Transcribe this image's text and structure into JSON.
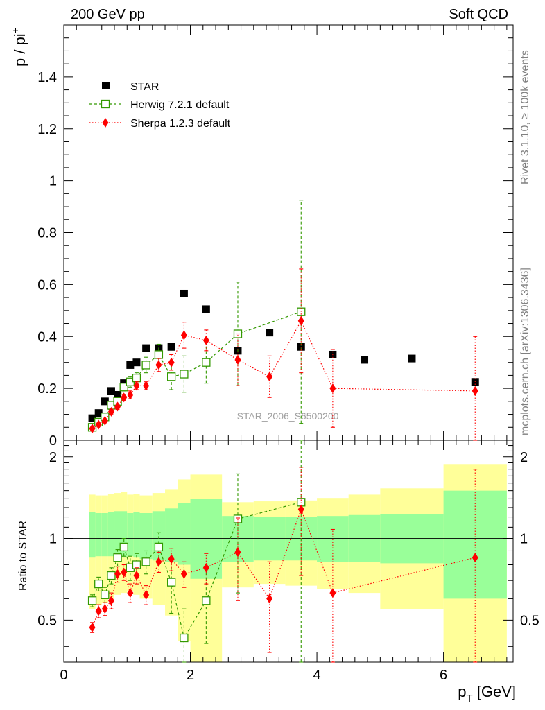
{
  "header": {
    "left": "200 GeV pp",
    "right": "Soft QCD"
  },
  "side_labels": {
    "rivet": "Rivet 3.1.10, ≥ 100k events",
    "mcplots": "mcplots.cern.ch [arXiv:1306.3436]"
  },
  "chart_data": {
    "type": "scatter",
    "analysis_label": "STAR_2006_S6500200",
    "top_panel": {
      "ylabel_main": "p / pi",
      "ylabel_sup": "+",
      "ylim": [
        0,
        1.6
      ],
      "yticks": [
        "0",
        "0.2",
        "0.4",
        "0.6",
        "0.8",
        "1",
        "1.2",
        "1.4"
      ],
      "ytick_values": [
        0,
        0.2,
        0.4,
        0.6,
        0.8,
        1.0,
        1.2,
        1.4
      ]
    },
    "ratio_panel": {
      "ylabel": "Ratio to STAR",
      "ylim": [
        0.35,
        2.3
      ],
      "yticks": [
        "0.5",
        "1",
        "2"
      ],
      "ytick_values": [
        0.5,
        1,
        2
      ],
      "reference_line": 1,
      "bands": [
        {
          "x0": 0.4,
          "x1": 0.5,
          "g_lo": 0.85,
          "g_hi": 1.25,
          "y_lo": 0.55,
          "y_hi": 1.45
        },
        {
          "x0": 0.5,
          "x1": 0.6,
          "g_lo": 0.86,
          "g_hi": 1.24,
          "y_lo": 0.57,
          "y_hi": 1.44
        },
        {
          "x0": 0.6,
          "x1": 0.7,
          "g_lo": 0.86,
          "g_hi": 1.24,
          "y_lo": 0.58,
          "y_hi": 1.44
        },
        {
          "x0": 0.7,
          "x1": 0.8,
          "g_lo": 0.86,
          "g_hi": 1.25,
          "y_lo": 0.6,
          "y_hi": 1.46
        },
        {
          "x0": 0.8,
          "x1": 0.9,
          "g_lo": 0.85,
          "g_hi": 1.26,
          "y_lo": 0.62,
          "y_hi": 1.47
        },
        {
          "x0": 0.9,
          "x1": 1.0,
          "g_lo": 0.85,
          "g_hi": 1.26,
          "y_lo": 0.63,
          "y_hi": 1.48
        },
        {
          "x0": 1.0,
          "x1": 1.1,
          "g_lo": 0.86,
          "g_hi": 1.24,
          "y_lo": 0.64,
          "y_hi": 1.45
        },
        {
          "x0": 1.1,
          "x1": 1.2,
          "g_lo": 0.85,
          "g_hi": 1.25,
          "y_lo": 0.62,
          "y_hi": 1.46
        },
        {
          "x0": 1.2,
          "x1": 1.4,
          "g_lo": 0.84,
          "g_hi": 1.24,
          "y_lo": 0.6,
          "y_hi": 1.44
        },
        {
          "x0": 1.4,
          "x1": 1.6,
          "g_lo": 0.83,
          "g_hi": 1.26,
          "y_lo": 0.57,
          "y_hi": 1.47
        },
        {
          "x0": 1.6,
          "x1": 1.8,
          "g_lo": 0.82,
          "g_hi": 1.29,
          "y_lo": 0.52,
          "y_hi": 1.52
        },
        {
          "x0": 1.8,
          "x1": 2.0,
          "g_lo": 0.8,
          "g_hi": 1.35,
          "y_lo": 0.42,
          "y_hi": 1.65
        },
        {
          "x0": 2.0,
          "x1": 2.5,
          "g_lo": 0.71,
          "g_hi": 1.4,
          "y_lo": 0.3,
          "y_hi": 1.72
        },
        {
          "x0": 2.5,
          "x1": 3.0,
          "g_lo": 0.82,
          "g_hi": 1.21,
          "y_lo": 0.66,
          "y_hi": 1.36
        },
        {
          "x0": 3.0,
          "x1": 3.5,
          "g_lo": 0.83,
          "g_hi": 1.2,
          "y_lo": 0.68,
          "y_hi": 1.37
        },
        {
          "x0": 3.5,
          "x1": 4.0,
          "g_lo": 0.83,
          "g_hi": 1.2,
          "y_lo": 0.67,
          "y_hi": 1.38
        },
        {
          "x0": 4.0,
          "x1": 4.5,
          "g_lo": 0.82,
          "g_hi": 1.21,
          "y_lo": 0.65,
          "y_hi": 1.41
        },
        {
          "x0": 4.5,
          "x1": 5.0,
          "g_lo": 0.82,
          "g_hi": 1.22,
          "y_lo": 0.63,
          "y_hi": 1.45
        },
        {
          "x0": 5.0,
          "x1": 6.0,
          "g_lo": 0.81,
          "g_hi": 1.23,
          "y_lo": 0.55,
          "y_hi": 1.53
        },
        {
          "x0": 6.0,
          "x1": 7.0,
          "g_lo": 0.6,
          "g_hi": 1.5,
          "y_lo": 0.35,
          "y_hi": 1.88
        }
      ]
    },
    "xlabel": "p",
    "xlabel_sub": "T",
    "xlabel_unit": " [GeV]",
    "xlim": [
      0,
      7.1
    ],
    "xticks": [
      "0",
      "2",
      "4",
      "6"
    ],
    "xtick_values": [
      0,
      2,
      4,
      6
    ],
    "legend": {
      "placement": "top-left",
      "entries": [
        "STAR",
        "Herwig 7.2.1 default",
        "Sherpa 1.2.3 default"
      ]
    },
    "series": [
      {
        "name": "STAR",
        "color": "#000000",
        "x": [
          0.45,
          0.55,
          0.65,
          0.75,
          0.85,
          0.95,
          1.05,
          1.15,
          1.3,
          1.5,
          1.7,
          1.9,
          2.25,
          2.75,
          3.25,
          3.75,
          4.25,
          4.75,
          5.5,
          6.5
        ],
        "y": [
          0.085,
          0.105,
          0.15,
          0.19,
          0.175,
          0.22,
          0.29,
          0.3,
          0.355,
          0.355,
          0.36,
          0.565,
          0.505,
          0.345,
          0.415,
          0.36,
          0.33,
          0.31,
          0.315,
          0.225
        ]
      },
      {
        "name": "Herwig 7.2.1 default",
        "color": "#339900",
        "x": [
          0.45,
          0.55,
          0.65,
          0.75,
          0.85,
          0.95,
          1.05,
          1.15,
          1.3,
          1.5,
          1.7,
          1.9,
          2.25,
          2.75,
          3.75
        ],
        "y": [
          0.05,
          0.07,
          0.09,
          0.135,
          0.15,
          0.205,
          0.225,
          0.24,
          0.29,
          0.33,
          0.245,
          0.255,
          0.3,
          0.41,
          0.495
        ],
        "err": [
          0.005,
          0.006,
          0.008,
          0.01,
          0.012,
          0.015,
          0.02,
          0.02,
          0.03,
          0.04,
          0.05,
          0.07,
          0.08,
          0.2,
          0.43
        ],
        "ratio": [
          0.59,
          0.68,
          0.62,
          0.73,
          0.85,
          0.93,
          0.78,
          0.8,
          0.82,
          0.93,
          0.69,
          0.43,
          0.59,
          1.18,
          1.36
        ],
        "ratio_err": [
          0.03,
          0.04,
          0.04,
          0.05,
          0.06,
          0.07,
          0.08,
          0.08,
          0.08,
          0.12,
          0.16,
          0.12,
          0.18,
          0.55,
          1.2
        ]
      },
      {
        "name": "Sherpa 1.2.3 default",
        "color": "#ff0000",
        "x": [
          0.45,
          0.55,
          0.65,
          0.75,
          0.85,
          0.95,
          1.05,
          1.15,
          1.3,
          1.5,
          1.7,
          1.9,
          2.25,
          2.75,
          3.25,
          3.75,
          4.25,
          6.5
        ],
        "y": [
          0.045,
          0.06,
          0.075,
          0.11,
          0.13,
          0.165,
          0.175,
          0.21,
          0.21,
          0.29,
          0.3,
          0.405,
          0.385,
          0.31,
          0.245,
          0.46,
          0.2,
          0.19
        ],
        "err": [
          0.005,
          0.006,
          0.007,
          0.009,
          0.01,
          0.012,
          0.015,
          0.015,
          0.015,
          0.025,
          0.03,
          0.05,
          0.04,
          0.1,
          0.08,
          0.2,
          0.15,
          0.21
        ],
        "ratio": [
          0.47,
          0.54,
          0.55,
          0.59,
          0.74,
          0.75,
          0.63,
          0.73,
          0.62,
          0.82,
          0.84,
          0.74,
          0.78,
          0.89,
          0.6,
          1.28,
          0.63,
          0.85
        ],
        "ratio_err": [
          0.02,
          0.03,
          0.03,
          0.04,
          0.05,
          0.05,
          0.05,
          0.05,
          0.05,
          0.07,
          0.08,
          0.08,
          0.1,
          0.3,
          0.22,
          0.55,
          0.45,
          0.95
        ]
      }
    ]
  }
}
